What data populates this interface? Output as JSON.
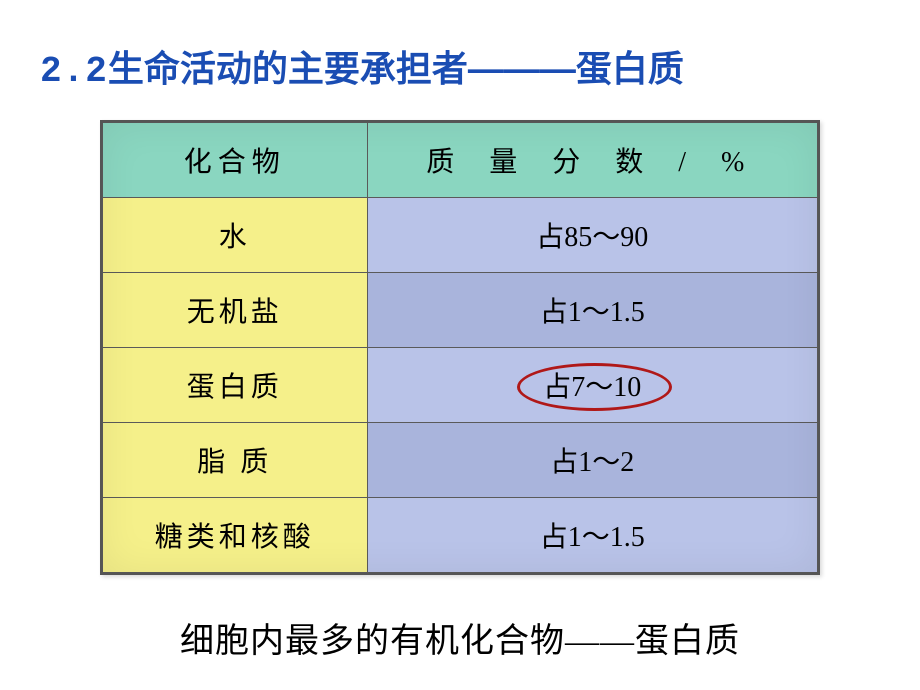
{
  "title": {
    "section_num": "2.2",
    "heading": "生命活动的主要承担者———蛋白质",
    "color": "#1a4db3",
    "fontsize": 36
  },
  "table": {
    "type": "table",
    "header": {
      "col1": "化合物",
      "col2": "质 量 分 数 / %",
      "bg_color": "#8ad6c0",
      "fontsize": 28
    },
    "col_left_bg": "#f5f08a",
    "col_right_bg": "#b9c3e8",
    "border_color": "#5a5a5a",
    "rows": [
      {
        "compound": "水",
        "value": "占85～90"
      },
      {
        "compound": "无机盐",
        "value": "占1～1.5"
      },
      {
        "compound": "蛋白质",
        "value": "占7～10",
        "highlighted": true
      },
      {
        "compound": "脂 质",
        "value": "占1～2"
      },
      {
        "compound": "糖类和核酸",
        "value": "占1～1.5"
      }
    ],
    "highlight_ellipse": {
      "color": "#b01818",
      "border_width": 3,
      "row_index": 2
    }
  },
  "footer": {
    "text": "细胞内最多的有机化合物——蛋白质",
    "fontsize": 34,
    "color": "#000000"
  }
}
